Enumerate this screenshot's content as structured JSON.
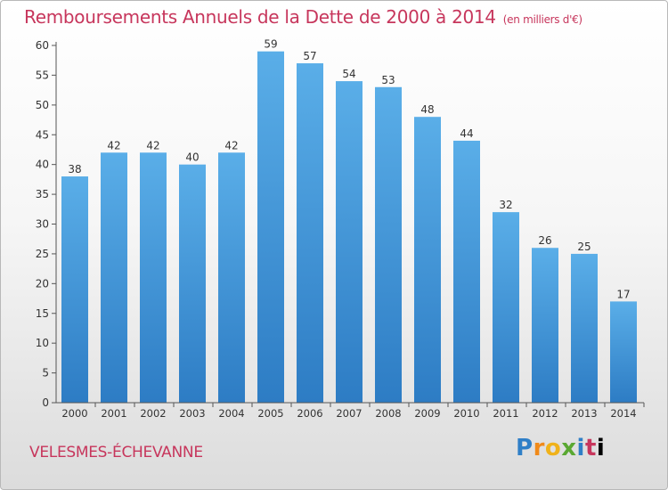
{
  "header": {
    "title": "Remboursements Annuels de la Dette de 2000 à 2014",
    "unit": "(en milliers d'€)"
  },
  "footer": {
    "commune": "VELESMES-ÉCHEVANNE",
    "brand_letters": [
      "P",
      "r",
      "o",
      "x",
      "i",
      "t",
      "i"
    ]
  },
  "colors": {
    "bar": "#3d8fd6",
    "title": "#c7365c"
  },
  "chart_data": {
    "type": "bar",
    "title": "Remboursements Annuels de la Dette de 2000 à 2014",
    "xlabel": "",
    "ylabel": "",
    "categories": [
      "2000",
      "2001",
      "2002",
      "2003",
      "2004",
      "2005",
      "2006",
      "2007",
      "2008",
      "2009",
      "2010",
      "2011",
      "2012",
      "2013",
      "2014"
    ],
    "values": [
      38,
      42,
      42,
      40,
      42,
      59,
      57,
      54,
      53,
      48,
      44,
      32,
      26,
      25,
      17
    ],
    "ylim": [
      0,
      60
    ],
    "yticks": [
      0,
      5,
      10,
      15,
      20,
      25,
      30,
      35,
      40,
      45,
      50,
      55,
      60
    ],
    "grid": false,
    "legend": "none"
  }
}
